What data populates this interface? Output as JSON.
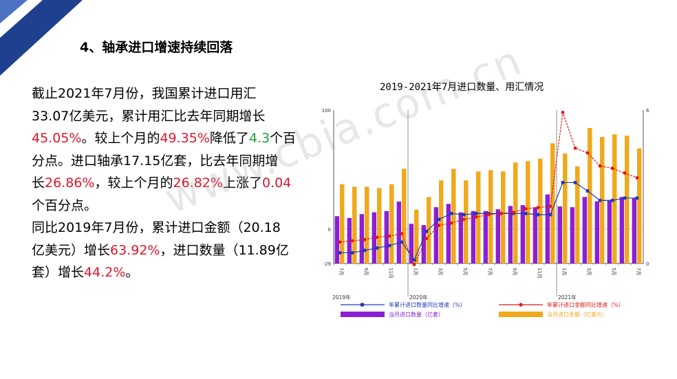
{
  "heading": "4、轴承进口增速持续回落",
  "paragraph": [
    [
      {
        "t": "截止2021年7月份，我国累计进口用汇"
      }
    ],
    [
      {
        "t": "33.07亿美元，累计用汇比去年同期增长"
      }
    ],
    [
      {
        "t": "45.05%",
        "c": "red"
      },
      {
        "t": "。较上个月的"
      },
      {
        "t": "49.35%",
        "c": "red"
      },
      {
        "t": "降低了"
      },
      {
        "t": "4.3",
        "c": "green"
      },
      {
        "t": "个百"
      }
    ],
    [
      {
        "t": "分点。进口轴承17.15亿套，比去年同期增"
      }
    ],
    [
      {
        "t": "长"
      },
      {
        "t": "26.86%",
        "c": "red"
      },
      {
        "t": "，较上个月的"
      },
      {
        "t": "26.82%",
        "c": "red"
      },
      {
        "t": "上涨了"
      },
      {
        "t": "0.04",
        "c": "red"
      }
    ],
    [
      {
        "t": "个百分点。"
      }
    ],
    [
      {
        "t": "同比2019年7月份，累计进口金额（20.18"
      }
    ],
    [
      {
        "t": "亿美元）增长"
      },
      {
        "t": "63.92%",
        "c": "red"
      },
      {
        "t": "，进口数量（11.89亿"
      }
    ],
    [
      {
        "t": "套）增长"
      },
      {
        "t": "44.2%",
        "c": "red"
      },
      {
        "t": "。"
      }
    ]
  ],
  "watermark": "www.cbia.com.cn",
  "colors": {
    "purple": "#8b1fd4",
    "orange": "#f0a81c",
    "blue": "#1c39b8",
    "red": "#e01818",
    "navy": "#1f3f8f"
  },
  "chart_data": {
    "type": "bar",
    "title": "2019-2021年7月进口数量、用汇情况",
    "categories": [
      "2019-7",
      "2019-8",
      "2019-9",
      "2019-10",
      "2019-11",
      "2019-12",
      "2020-1",
      "2020-2",
      "2020-3",
      "2020-4",
      "2020-5",
      "2020-6",
      "2020-7",
      "2020-8",
      "2020-9",
      "2020-10",
      "2020-11",
      "2020-12",
      "2021-1",
      "2021-2",
      "2021-3",
      "2021-4",
      "2021-5",
      "2021-6",
      "2021-7"
    ],
    "x_tick_labels": [
      "7月",
      "",
      "9月",
      "",
      "11月",
      "",
      "1月",
      "",
      "3月",
      "",
      "5月",
      "",
      "7月",
      "",
      "9月",
      "",
      "11月",
      "",
      "1月",
      "",
      "3月",
      "",
      "5月",
      "",
      "7月"
    ],
    "year_labels": [
      {
        "index": 0,
        "label": "2019年"
      },
      {
        "index": 6,
        "label": "2020年"
      },
      {
        "index": 18,
        "label": "2021年"
      }
    ],
    "left_axis": {
      "ylim": [
        -29,
        100
      ],
      "ticks": [
        {
          "v": 100,
          "label": "100"
        },
        {
          "v": 0,
          "label": "0"
        },
        {
          "v": -29,
          "label": "-29"
        }
      ]
    },
    "right_axis": {
      "ylim": [
        0,
        6
      ],
      "ticks": [
        {
          "v": 6,
          "label": "6"
        },
        {
          "v": 0,
          "label": "0"
        }
      ]
    },
    "series": [
      {
        "name": "当月进口数量（亿套）",
        "kind": "bar",
        "axis": "right",
        "values": [
          1.85,
          1.78,
          1.93,
          2.0,
          2.05,
          2.42,
          1.55,
          1.5,
          2.2,
          2.33,
          2.0,
          2.05,
          2.05,
          2.12,
          2.25,
          2.28,
          2.2,
          2.7,
          2.23,
          2.2,
          2.6,
          2.43,
          2.48,
          2.6,
          2.55
        ]
      },
      {
        "name": "当月进口金额（亿美元）",
        "kind": "bar",
        "axis": "right",
        "values": [
          3.1,
          3.0,
          3.0,
          2.95,
          3.1,
          3.7,
          2.1,
          2.6,
          3.25,
          3.7,
          3.25,
          3.6,
          3.65,
          3.6,
          3.95,
          4.0,
          4.1,
          4.7,
          4.3,
          3.8,
          5.3,
          4.95,
          5.05,
          5.0,
          4.5
        ]
      },
      {
        "name": "年累计进口数量同比增速（%）",
        "kind": "line",
        "axis": "left",
        "values": [
          -20,
          -20,
          -18,
          -16,
          -14,
          -11,
          -26,
          -2,
          8,
          13,
          12,
          13,
          13,
          13,
          13,
          13,
          12,
          12,
          39,
          39,
          32,
          24,
          24,
          26,
          26
        ]
      },
      {
        "name": "年累计进口金额同比增速（%）",
        "kind": "line",
        "axis": "left",
        "values": [
          -11,
          -10,
          -9,
          -7,
          -6,
          -4,
          -30,
          -8,
          3,
          5,
          8,
          10,
          12,
          13,
          14,
          17,
          18,
          19,
          98,
          68,
          64,
          53,
          51,
          47,
          43
        ]
      }
    ]
  }
}
